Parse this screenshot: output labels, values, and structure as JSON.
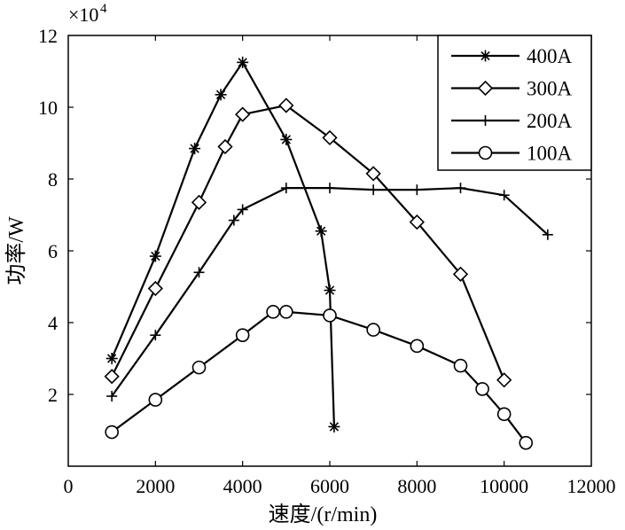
{
  "chart_data": {
    "type": "line",
    "title": "",
    "xlabel": "速度/(r/min)",
    "ylabel": "功率/W",
    "y_multiplier_label": "×10",
    "y_multiplier_exponent": "4",
    "xlim": [
      0,
      12000
    ],
    "ylim": [
      0,
      12
    ],
    "xticks": [
      0,
      2000,
      4000,
      6000,
      8000,
      10000,
      12000
    ],
    "yticks": [
      2,
      4,
      6,
      8,
      10,
      12
    ],
    "grid": false,
    "legend_position": "top-right",
    "series": [
      {
        "name": "400A",
        "marker": "asterisk",
        "x": [
          1000,
          2000,
          2900,
          3500,
          4000,
          5000,
          5800,
          6000,
          6100
        ],
        "y": [
          3.0,
          5.85,
          8.85,
          10.35,
          11.25,
          9.1,
          6.55,
          4.9,
          1.1
        ]
      },
      {
        "name": "300A",
        "marker": "diamond",
        "x": [
          1000,
          2000,
          3000,
          3600,
          4000,
          5000,
          6000,
          7000,
          8000,
          9000,
          10000
        ],
        "y": [
          2.5,
          4.95,
          7.35,
          8.9,
          9.8,
          10.05,
          9.15,
          8.15,
          6.8,
          5.35,
          2.4
        ]
      },
      {
        "name": "200A",
        "marker": "plus",
        "x": [
          1000,
          2000,
          3000,
          3800,
          4000,
          5000,
          6000,
          7000,
          8000,
          9000,
          10000,
          11000
        ],
        "y": [
          1.95,
          3.65,
          5.4,
          6.85,
          7.15,
          7.75,
          7.75,
          7.7,
          7.7,
          7.75,
          7.55,
          6.45
        ]
      },
      {
        "name": "100A",
        "marker": "circle",
        "x": [
          1000,
          2000,
          3000,
          4000,
          4700,
          5000,
          6000,
          7000,
          8000,
          9000,
          9500,
          10000,
          10500
        ],
        "y": [
          0.95,
          1.85,
          2.75,
          3.65,
          4.3,
          4.3,
          4.2,
          3.8,
          3.35,
          2.8,
          2.15,
          1.45,
          0.65
        ]
      }
    ]
  }
}
